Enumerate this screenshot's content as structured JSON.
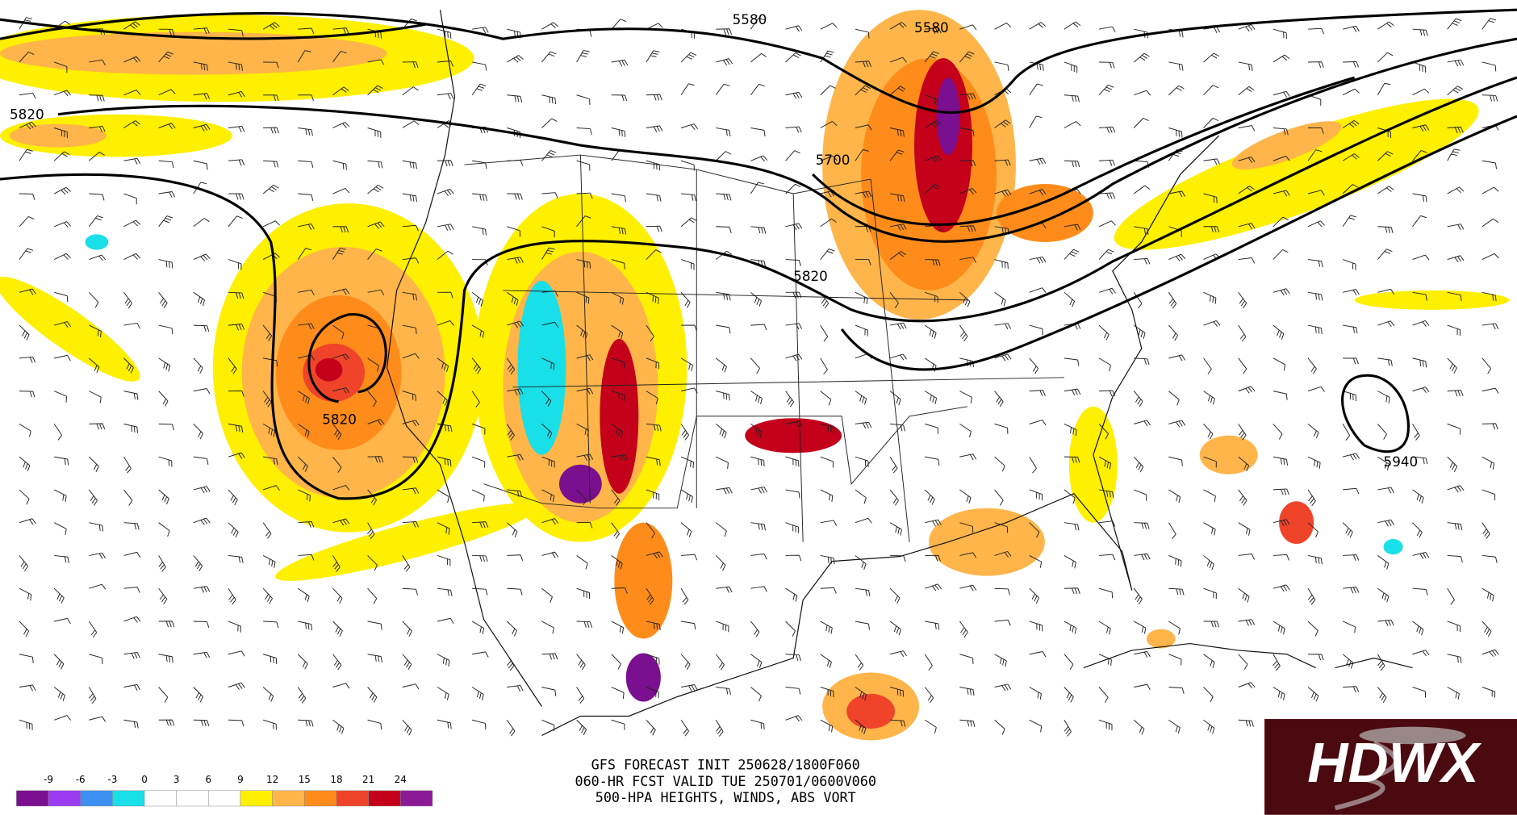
{
  "map": {
    "contour_labels": [
      "5820",
      "5580",
      "5580",
      "5700",
      "5820",
      "5820",
      "5940"
    ]
  },
  "footer": {
    "lines": [
      "GFS FORECAST INIT 250628/1800F060",
      "060-HR FCST VALID TUE 250701/0600V060",
      "500-HPA HEIGHTS, WINDS, ABS VORT"
    ]
  },
  "colorbar": {
    "ticks": [
      -9,
      -6,
      -3,
      0,
      3,
      6,
      9,
      12,
      15,
      18,
      21,
      24
    ],
    "colors": [
      "#7a0f8f",
      "#9b3cf0",
      "#3d8ff2",
      "#19dfe8",
      "#ffffff",
      "#ffffff",
      "#ffffff",
      "#ffef00",
      "#ffb54a",
      "#ff8c1a",
      "#f0442a",
      "#c4001a",
      "#8c1a96"
    ]
  },
  "logo": {
    "text": "HDWX"
  }
}
